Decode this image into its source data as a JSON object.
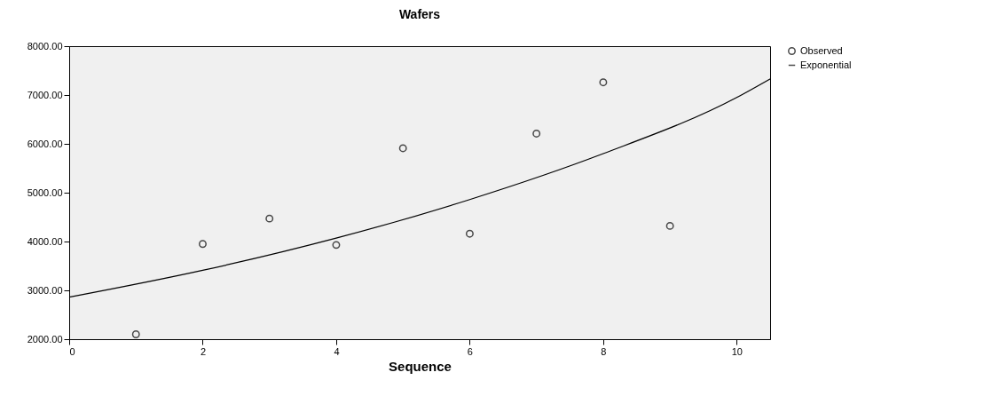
{
  "chart_data": {
    "type": "scatter",
    "title": "Wafers",
    "xlabel": "Sequence",
    "xlim": [
      0,
      10.5
    ],
    "xticks": [
      0,
      2,
      4,
      6,
      8,
      10
    ],
    "ylim": [
      2000,
      8000
    ],
    "yticks": [
      {
        "value": 2000,
        "label": "2000.00"
      },
      {
        "value": 3000,
        "label": "3000.00"
      },
      {
        "value": 4000,
        "label": "4000.00"
      },
      {
        "value": 5000,
        "label": "5000.00"
      },
      {
        "value": 6000,
        "label": "6000.00"
      },
      {
        "value": 7000,
        "label": "7000.00"
      },
      {
        "value": 8000,
        "label": "8000.00"
      }
    ],
    "grid": false,
    "legend": "top right",
    "series": [
      {
        "name": "Observed",
        "type": "scatter",
        "marker": "circle",
        "color": "#000000",
        "x": [
          1,
          2,
          3,
          4,
          5,
          6,
          7,
          8,
          9
        ],
        "values": [
          2100,
          3950,
          4470,
          3930,
          5910,
          4160,
          6210,
          7260,
          4320
        ]
      },
      {
        "name": "Exponential",
        "type": "line",
        "marker": "none",
        "color": "#000000",
        "x": [
          0,
          2,
          4,
          6,
          8,
          10,
          10.5
        ],
        "values": [
          2860,
          3410,
          4070,
          4860,
          5800,
          6950,
          7330
        ]
      }
    ]
  }
}
